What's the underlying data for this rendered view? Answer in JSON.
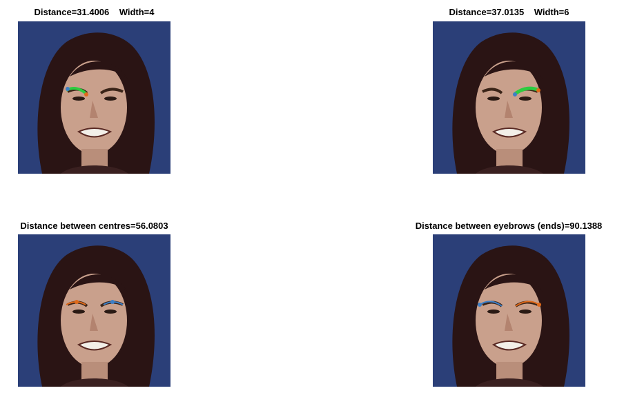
{
  "panels": [
    {
      "title": "Distance=31.4006    Width=4",
      "overlay": "left-brow-fill"
    },
    {
      "title": "Distance=37.0135    Width=6",
      "overlay": "right-brow-fill"
    },
    {
      "title": "Distance between centres=56.0803",
      "overlay": "brow-centres"
    },
    {
      "title": "Distance between eyebrows (ends)=90.1388",
      "overlay": "brow-ends"
    }
  ],
  "colors": {
    "background": "#2b3f78",
    "hair": "#2a1414",
    "skin": "#c9a08c",
    "overlay_blue": "#3d7fc6",
    "overlay_orange": "#e06a1a",
    "overlay_green": "#2ecc40"
  }
}
